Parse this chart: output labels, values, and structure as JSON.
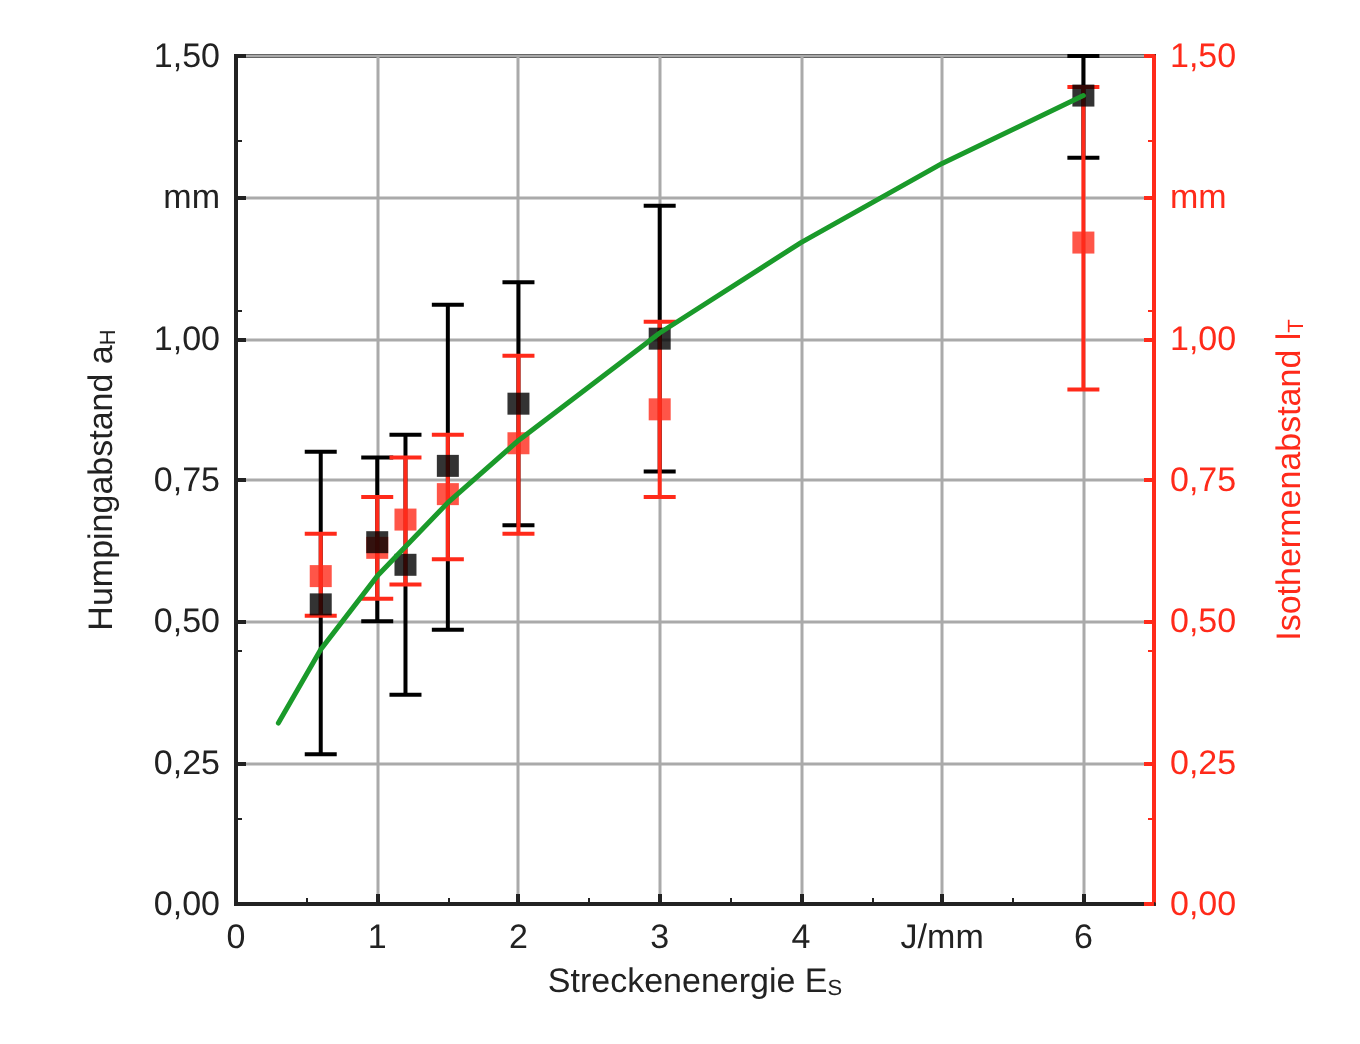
{
  "chart_data": {
    "type": "scatter",
    "xlabel": "Streckenenergie E$_{S}$",
    "ylabel": "Humpingabstand a$_{H}$",
    "y2label": "Isothermenabstand l$_{T}$",
    "xlim": [
      0,
      6.5
    ],
    "xticks": [
      0,
      1,
      2,
      3,
      4,
      {
        "value": 5,
        "label": "J/mm"
      },
      6
    ],
    "ylim": [
      0,
      1.5
    ],
    "yticks": [
      {
        "value": 0,
        "label": "0,00"
      },
      {
        "value": 0.25,
        "label": "0,25"
      },
      {
        "value": 0.5,
        "label": "0,50"
      },
      {
        "value": 0.75,
        "label": "0,75"
      },
      {
        "value": 1,
        "label": "1,00"
      },
      {
        "value": 1.25,
        "label": "mm"
      },
      {
        "value": 1.5,
        "label": "1,50"
      }
    ],
    "y2lim": [
      0,
      1.5
    ],
    "y2ticks": [
      {
        "value": 0,
        "label": "0,00"
      },
      {
        "value": 0.25,
        "label": "0,25"
      },
      {
        "value": 0.5,
        "label": "0,50"
      },
      {
        "value": 0.75,
        "label": "0,75"
      },
      {
        "value": 1,
        "label": "1,00"
      },
      {
        "value": 1.25,
        "label": "mm"
      },
      {
        "value": 1.5,
        "label": "1,50"
      }
    ],
    "grid": true,
    "marker": "square",
    "series": [
      {
        "type": "scatter",
        "color": "#000000",
        "x": [
          0.6,
          1,
          1.2,
          1.5,
          2,
          3,
          6
        ],
        "values": [
          0.53,
          0.64,
          0.6,
          0.775,
          0.885,
          1.0,
          1.43
        ],
        "errors": [
          [
            0.265,
            0.8
          ],
          [
            0.5,
            0.79
          ],
          [
            0.37,
            0.83
          ],
          [
            0.485,
            1.06
          ],
          [
            0.67,
            1.1
          ],
          [
            0.765,
            1.235
          ],
          [
            1.32,
            1.5
          ]
        ]
      },
      {
        "type": "scatter",
        "color": "#ff2a1a",
        "axis": "y2",
        "x": [
          0.6,
          1,
          1.2,
          1.5,
          2,
          3,
          6
        ],
        "values": [
          0.58,
          0.63,
          0.68,
          0.725,
          0.815,
          0.875,
          1.17
        ],
        "errors": [
          [
            0.51,
            0.655
          ],
          [
            0.54,
            0.72
          ],
          [
            0.565,
            0.79
          ],
          [
            0.61,
            0.83
          ],
          [
            0.655,
            0.97
          ],
          [
            0.72,
            1.03
          ],
          [
            0.91,
            1.445
          ]
        ]
      },
      {
        "type": "line",
        "color": "#1a9a2a",
        "marker": "none",
        "x": [
          0.3,
          0.6,
          1,
          1.5,
          2,
          3,
          4,
          5,
          6
        ],
        "values": [
          0.32,
          0.45,
          0.58,
          0.71,
          0.82,
          1.01,
          1.17,
          1.31,
          1.43
        ]
      }
    ]
  }
}
